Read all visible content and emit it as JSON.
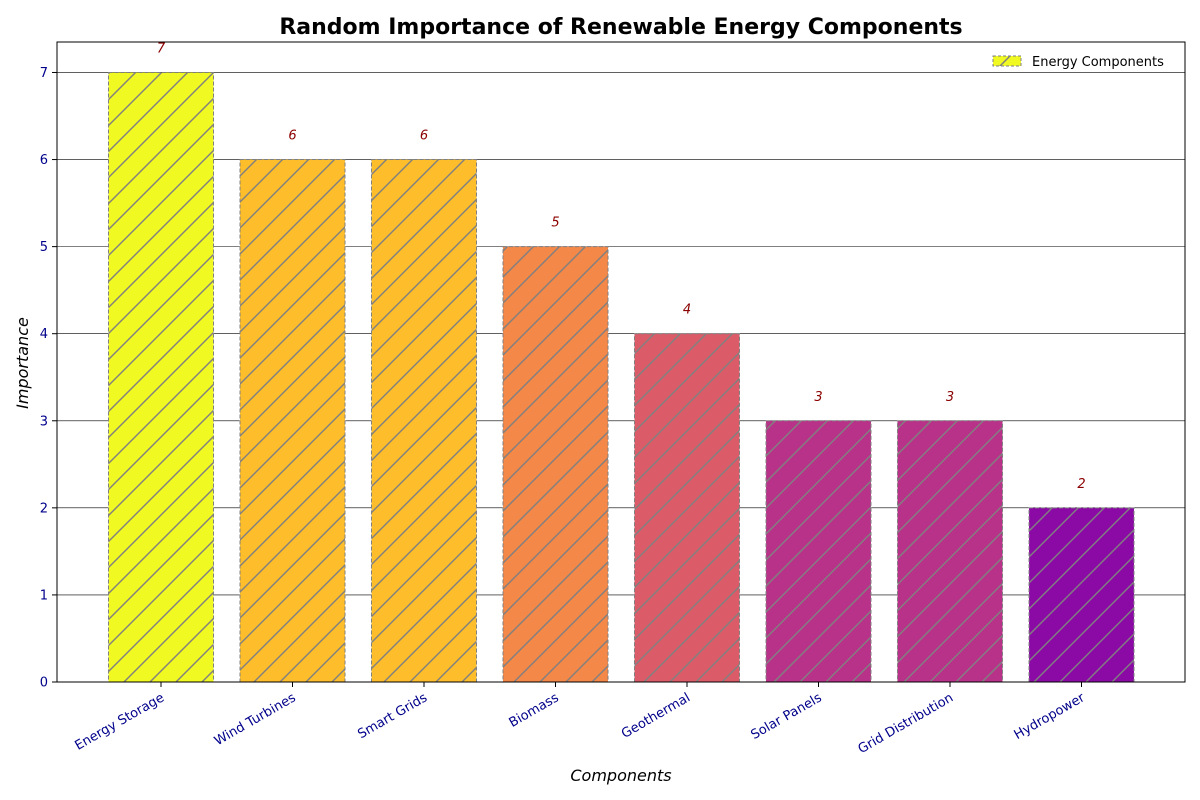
{
  "chart_data": {
    "type": "bar",
    "title": "Random Importance of Renewable Energy Components",
    "xlabel": "Components",
    "ylabel": "Importance",
    "categories": [
      "Energy Storage",
      "Wind Turbines",
      "Smart Grids",
      "Biomass",
      "Geothermal",
      "Solar Panels",
      "Grid Distribution",
      "Hydropower"
    ],
    "values": [
      7,
      6,
      6,
      5,
      4,
      3,
      3,
      2
    ],
    "colors": [
      "#f0f921",
      "#febd2a",
      "#febd2a",
      "#f48849",
      "#db5c68",
      "#b83289",
      "#b83289",
      "#8b0aa5"
    ],
    "ylim": [
      0,
      7.35
    ],
    "yticks": [
      0,
      1,
      2,
      3,
      4,
      5,
      6,
      7
    ],
    "grid": true,
    "legend": {
      "label": "Energy Components",
      "position": "upper right"
    },
    "bar_edge_color": "#808080",
    "hatch": "/",
    "data_labels": true
  }
}
